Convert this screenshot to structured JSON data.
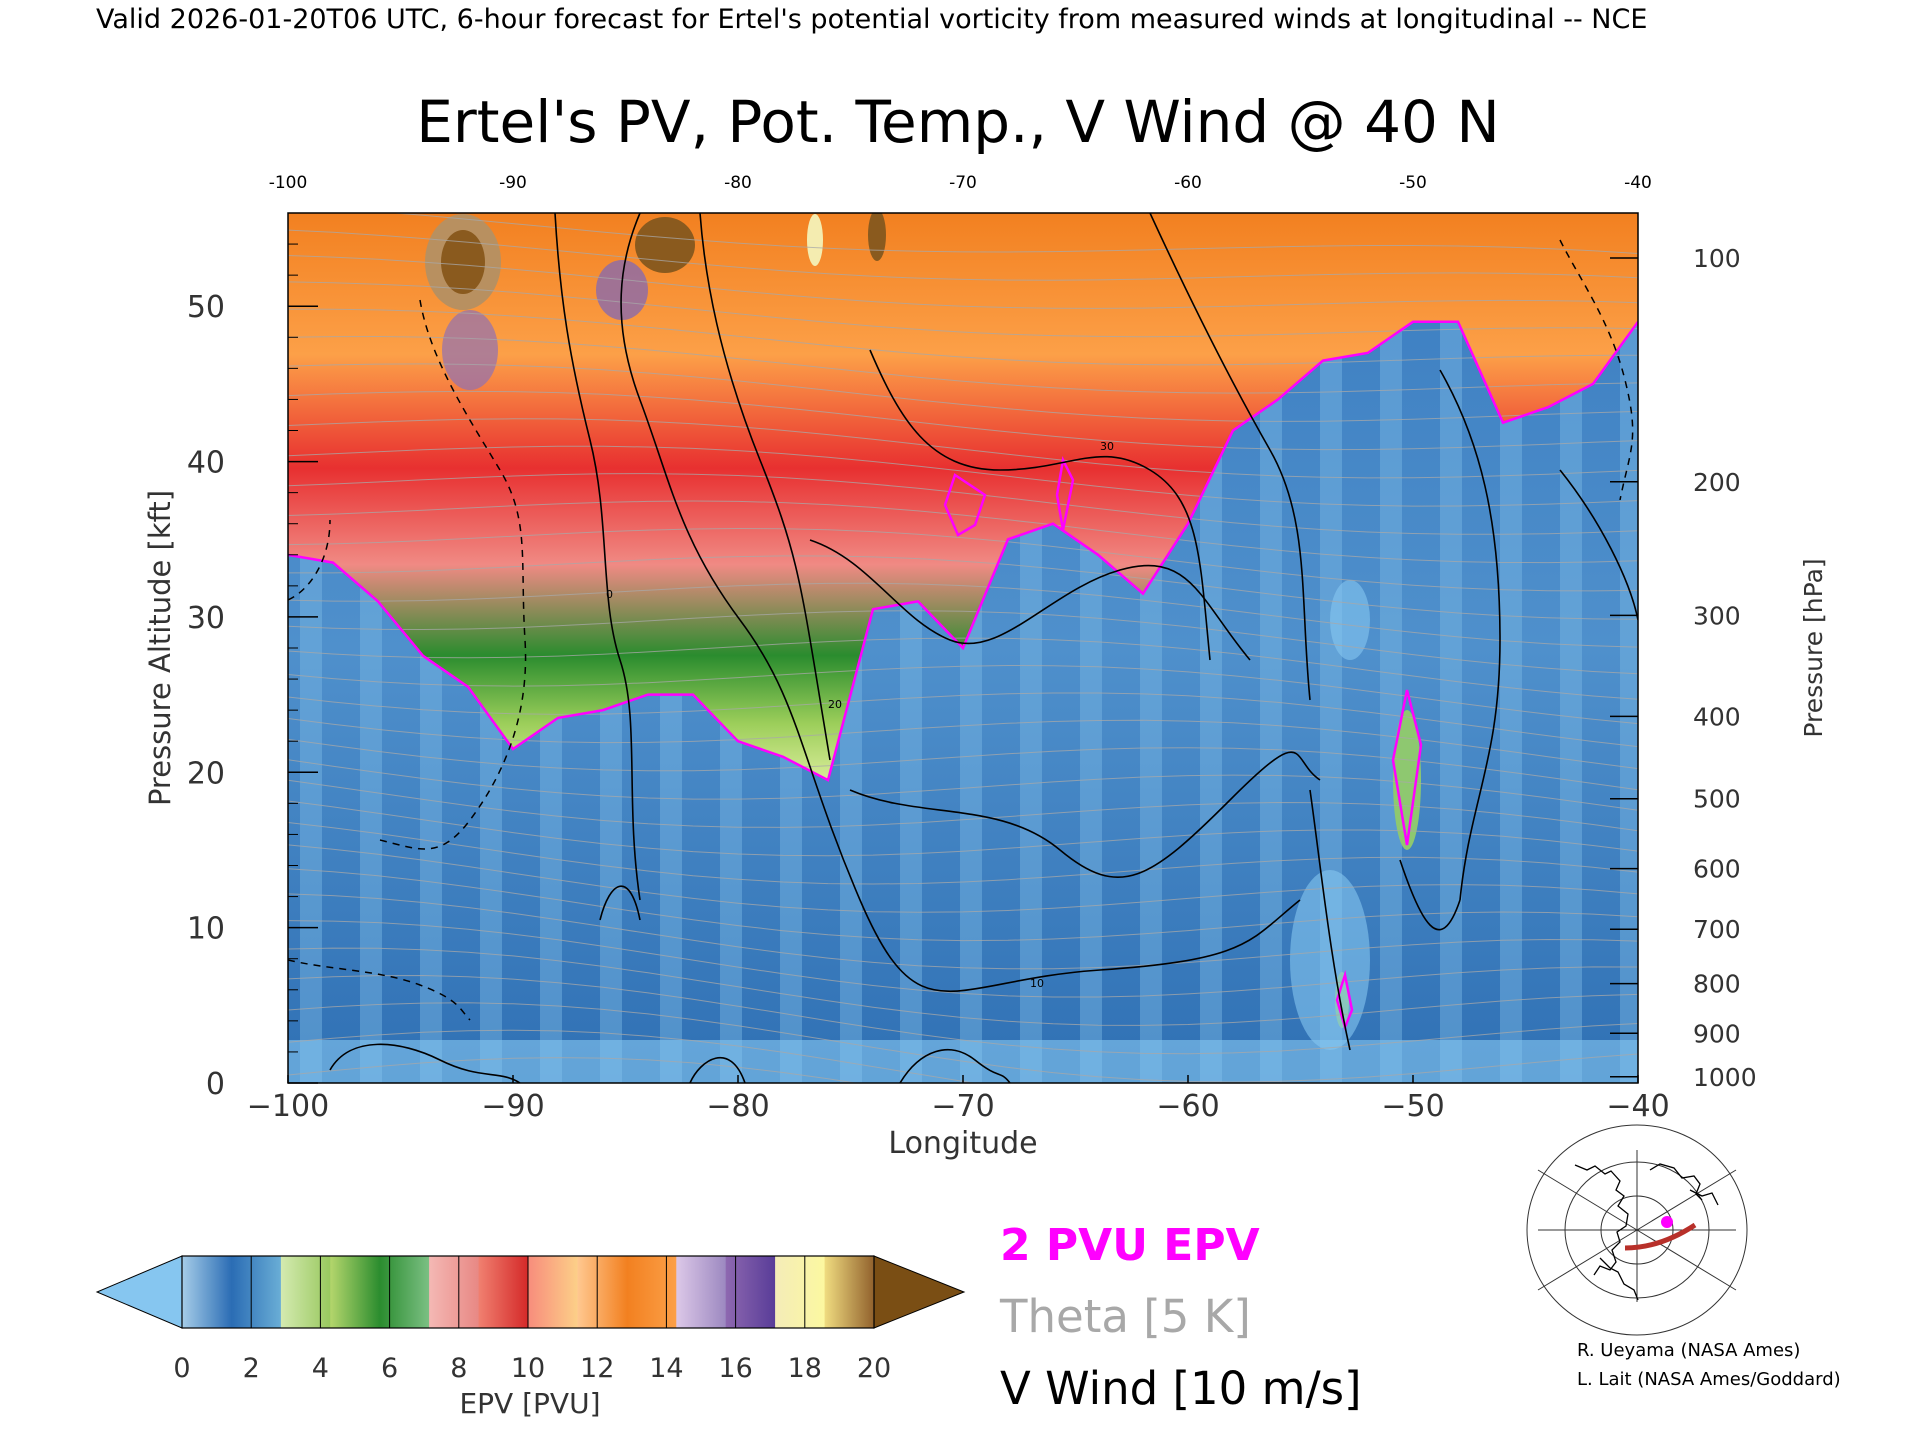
{
  "header": {
    "banner": "Valid 2026-01-20T06 UTC, 6-hour forecast for Ertel's potential vorticity from measured winds at longitudinal -- NCE"
  },
  "chart_data": {
    "type": "heatmap",
    "title": "Ertel's PV, Pot. Temp., V Wind @ 40 N",
    "xlabel": "Longitude",
    "ylabel_left": "Pressure Altitude [kft]",
    "ylabel_right": "Pressure [hPa]",
    "xlim": [
      -100,
      -40
    ],
    "ylim": [
      0,
      56
    ],
    "x_ticks_bottom": [
      "−100",
      "−90",
      "−80",
      "−70",
      "−60",
      "−50",
      "−40"
    ],
    "x_ticks_top": [
      "-100",
      "-90",
      "-80",
      "-70",
      "-60",
      "-50",
      "-40"
    ],
    "y_ticks_left": [
      "0",
      "10",
      "20",
      "30",
      "40",
      "50"
    ],
    "pressure_ticks": [
      {
        "hpa": 100,
        "kft": 53.1
      },
      {
        "hpa": 200,
        "kft": 38.7
      },
      {
        "hpa": 300,
        "kft": 30.1
      },
      {
        "hpa": 400,
        "kft": 23.6
      },
      {
        "hpa": 500,
        "kft": 18.3
      },
      {
        "hpa": 600,
        "kft": 13.8
      },
      {
        "hpa": 700,
        "kft": 9.9
      },
      {
        "hpa": 800,
        "kft": 6.4
      },
      {
        "hpa": 900,
        "kft": 3.2
      },
      {
        "hpa": 1000,
        "kft": 0.4
      }
    ],
    "colorbar": {
      "label": "EPV [PVU]",
      "ticks": [
        "0",
        "2",
        "4",
        "6",
        "8",
        "10",
        "12",
        "14",
        "16",
        "18",
        "20"
      ],
      "below_color": "#86c6f0",
      "above_color": "#7a4e14",
      "segments": [
        [
          "#a6cde8",
          "#2a6cb4"
        ],
        [
          "#2a6cb4",
          "#6aaed6"
        ],
        [
          "#d4eab0",
          "#98c85e"
        ],
        [
          "#b4d66c",
          "#2a8c2e"
        ],
        [
          "#2a8c2e",
          "#7cc084"
        ],
        [
          "#f4b8b4",
          "#e88884"
        ],
        [
          "#f08070",
          "#d42828"
        ],
        [
          "#f88c7c",
          "#fcd088"
        ],
        [
          "#ffc890",
          "#f28020"
        ],
        [
          "#f28020",
          "#fca048"
        ],
        [
          "#dcc8e8",
          "#9c88c0"
        ],
        [
          "#8e68b0",
          "#583c98"
        ],
        [
          "#f4ecb8",
          "#fcf8a0"
        ],
        [
          "#f0dc80",
          "#90602c"
        ]
      ]
    },
    "legend": [
      {
        "label": "2 PVU EPV",
        "color": "#ff00ff"
      },
      {
        "label": "Theta [5 K]",
        "color": "#a8a8a8"
      },
      {
        "label": "V Wind [10 m/s]",
        "color": "#000000"
      }
    ],
    "wind_contour_labels": [
      "0",
      "10",
      "20",
      "30"
    ],
    "credits": [
      "R. Ueyama (NASA Ames)",
      "L. Lait (NASA Ames/Goddard)"
    ],
    "tropopause_2pvu_kft": [
      {
        "lon": -100,
        "kft": 34.0
      },
      {
        "lon": -98,
        "kft": 33.5
      },
      {
        "lon": -96,
        "kft": 31.0
      },
      {
        "lon": -94,
        "kft": 27.5
      },
      {
        "lon": -92,
        "kft": 25.5
      },
      {
        "lon": -90,
        "kft": 21.5
      },
      {
        "lon": -88,
        "kft": 23.5
      },
      {
        "lon": -86,
        "kft": 24.0
      },
      {
        "lon": -84,
        "kft": 25.0
      },
      {
        "lon": -82,
        "kft": 25.0
      },
      {
        "lon": -80,
        "kft": 22.0
      },
      {
        "lon": -78,
        "kft": 21.0
      },
      {
        "lon": -76,
        "kft": 19.5
      },
      {
        "lon": -74,
        "kft": 30.5
      },
      {
        "lon": -72,
        "kft": 31.0
      },
      {
        "lon": -70,
        "kft": 28.0
      },
      {
        "lon": -68,
        "kft": 35.0
      },
      {
        "lon": -66,
        "kft": 36.0
      },
      {
        "lon": -64,
        "kft": 34.0
      },
      {
        "lon": -62,
        "kft": 31.5
      },
      {
        "lon": -60,
        "kft": 36.0
      },
      {
        "lon": -58,
        "kft": 42.0
      },
      {
        "lon": -56,
        "kft": 44.0
      },
      {
        "lon": -54,
        "kft": 46.5
      },
      {
        "lon": -52,
        "kft": 47.0
      },
      {
        "lon": -50,
        "kft": 49.0
      },
      {
        "lon": -48,
        "kft": 49.0
      },
      {
        "lon": -46,
        "kft": 42.5
      },
      {
        "lon": -44,
        "kft": 43.5
      },
      {
        "lon": -42,
        "kft": 45.0
      },
      {
        "lon": -40,
        "kft": 49.0
      }
    ]
  }
}
